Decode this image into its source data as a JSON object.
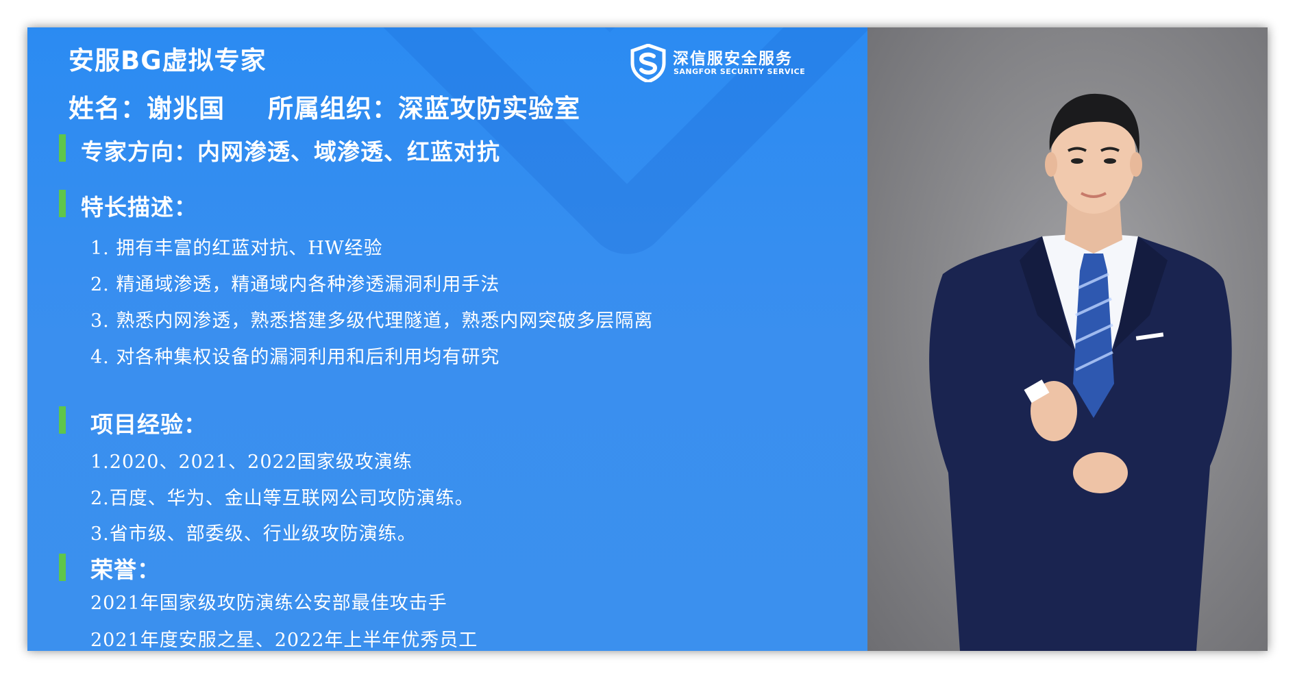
{
  "header": {
    "title": "安服BG虚拟专家",
    "name": "姓名：谢兆国",
    "org": "所属组织：深蓝攻防实验室"
  },
  "logo": {
    "cn": "深信服安全服务",
    "en": "SANGFOR SECURITY SERVICE",
    "icon": "shield-s-icon"
  },
  "direction": "专家方向：内网渗透、域渗透、红蓝对抗",
  "strengths": {
    "heading": "特长描述：",
    "items": [
      "1. 拥有丰富的红蓝对抗、HW经验",
      "2. 精通域渗透，精通域内各种渗透漏洞利用手法",
      "3. 熟悉内网渗透，熟悉搭建多级代理隧道，熟悉内网突破多层隔离",
      "4. 对各种集权设备的漏洞利用和后利用均有研究"
    ]
  },
  "projects": {
    "heading": "项目经验：",
    "items": [
      "1.2020、2021、2022国家级攻演练",
      "2.百度、华为、金山等互联网公司攻防演练。",
      "3.省市级、部委级、行业级攻防演练。"
    ]
  },
  "honors": {
    "heading": "荣誉：",
    "items": [
      "2021年国家级攻防演练公安部最佳攻击手",
      "2021年度安服之星、2022年上半年优秀员工"
    ]
  },
  "colors": {
    "panel_blue": "#3a8fef",
    "accent_green": "#5fc64a",
    "photo_bg": "#8c8c8f",
    "suit_navy": "#1a2450"
  }
}
